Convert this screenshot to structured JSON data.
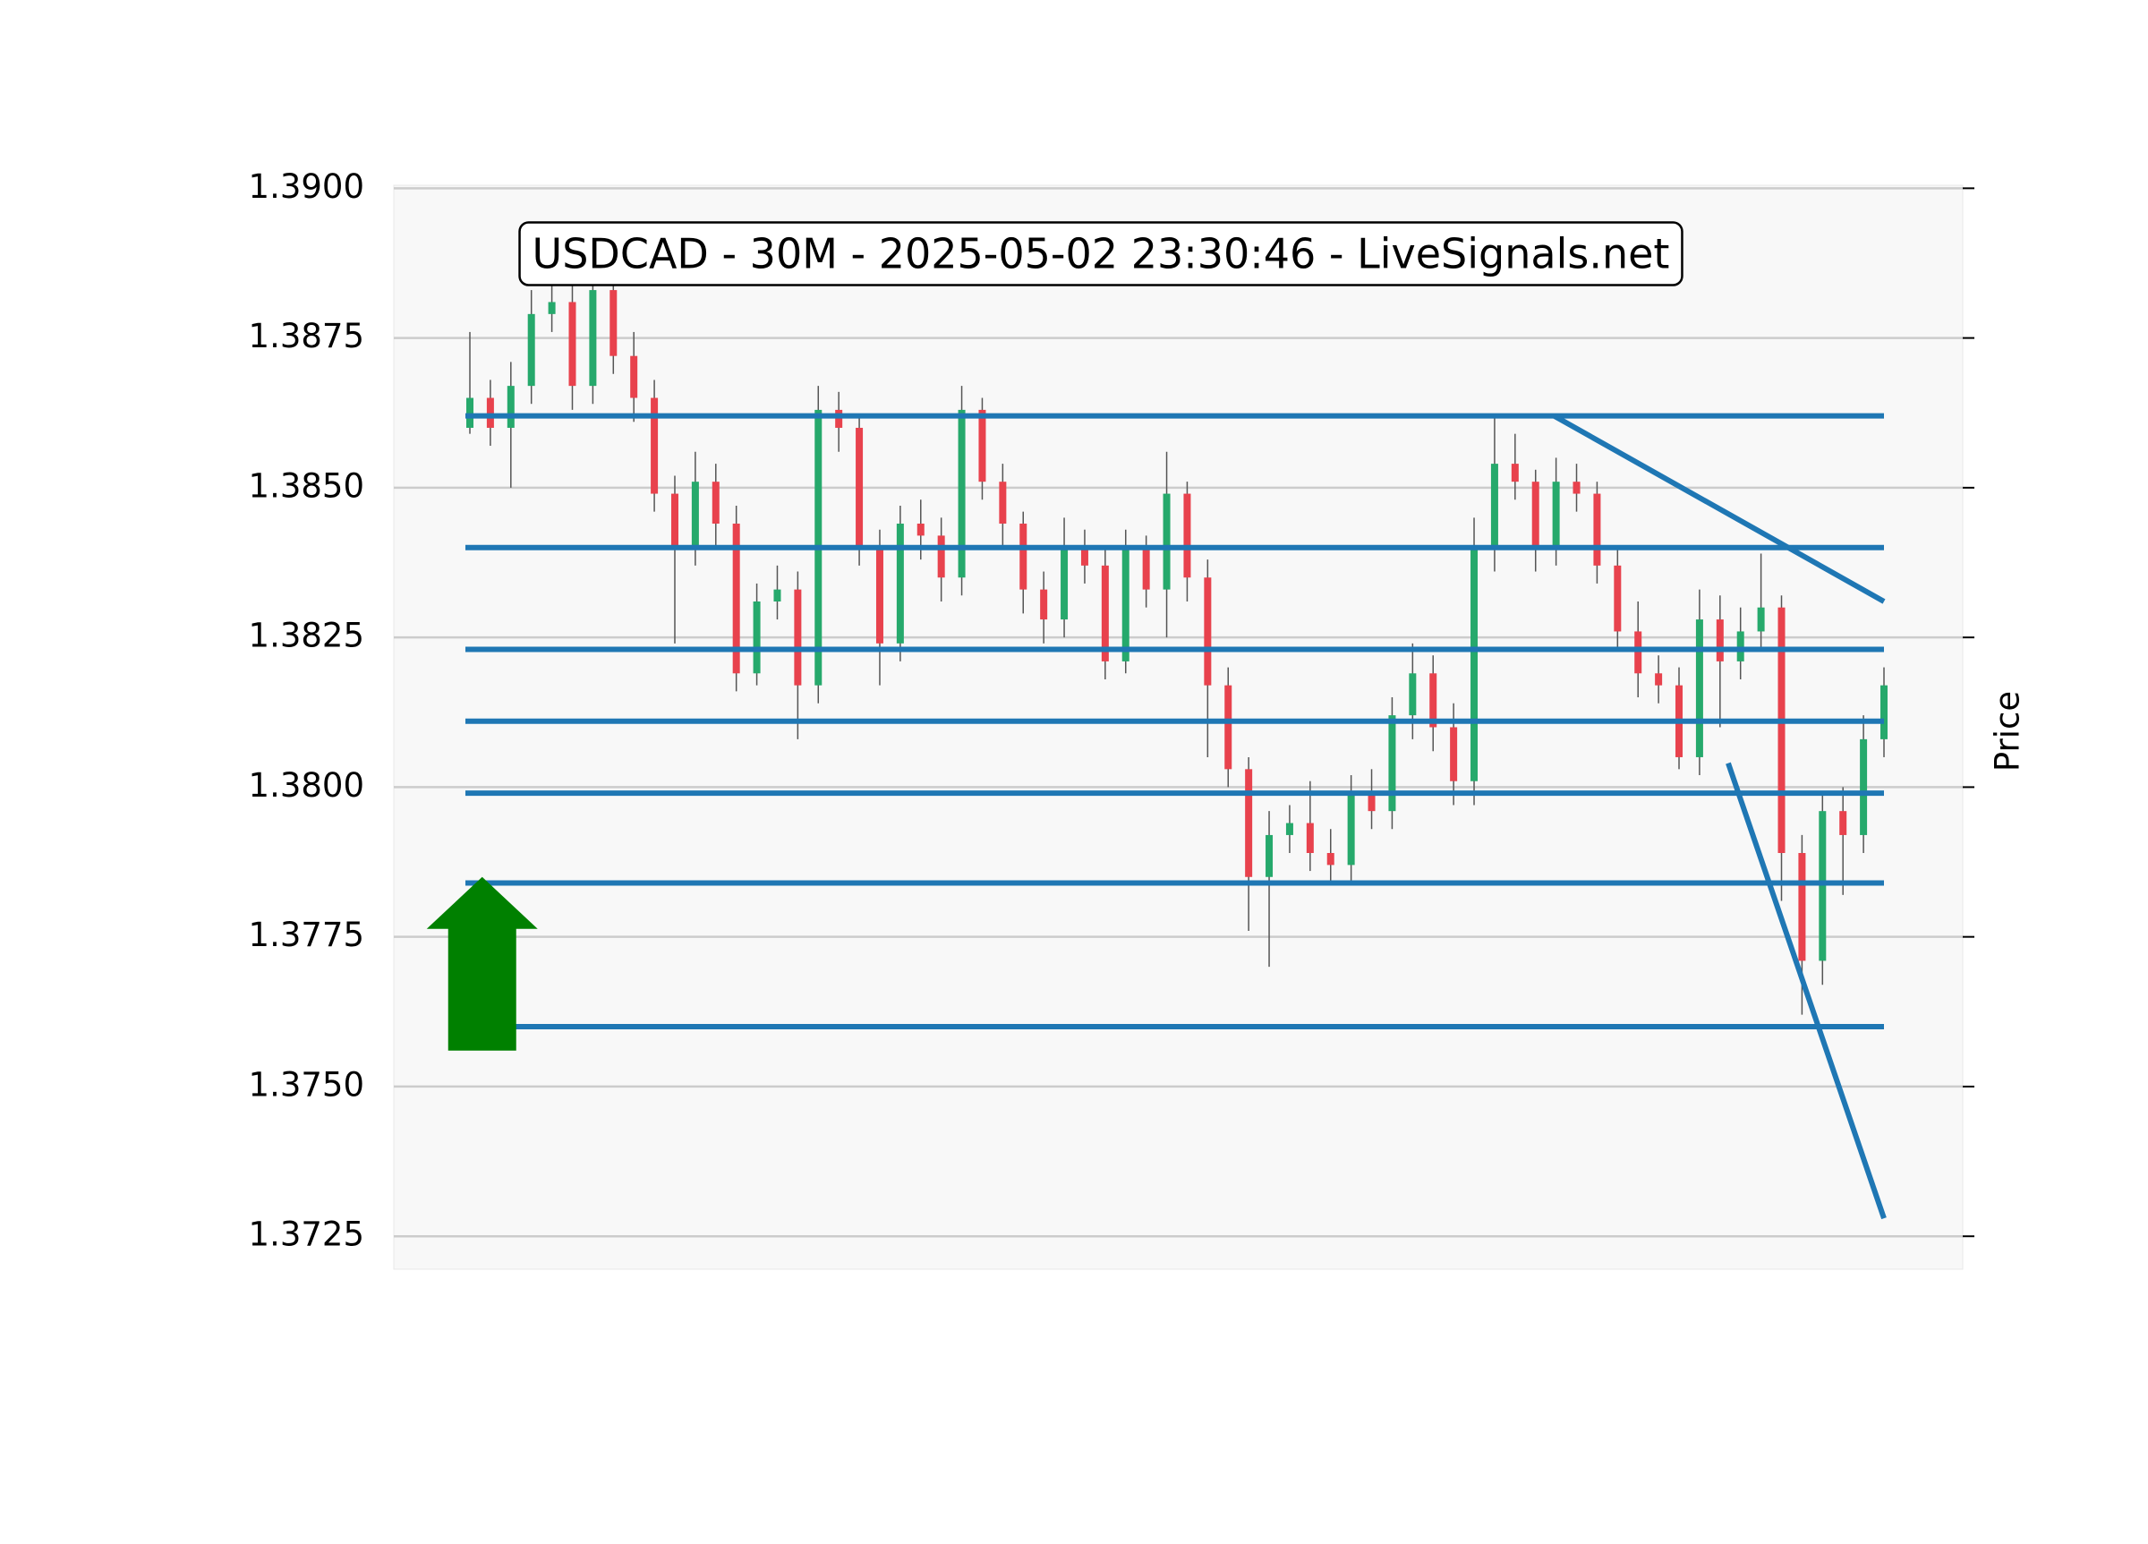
{
  "chart_data": {
    "type": "candlestick",
    "title": "USDCAD - 30M - 2025-05-02 23:30:46 - LiveSignals.net",
    "y_label": "Price",
    "up_color": "#26a96c",
    "down_color": "#e8424d",
    "open": [
      1.386,
      1.3865,
      1.386,
      1.3867,
      1.3879,
      1.3881,
      1.3867,
      1.3883,
      1.3872,
      1.3865,
      1.3849,
      1.384,
      1.3851,
      1.3844,
      1.3819,
      1.3831,
      1.3833,
      1.3817,
      1.3863,
      1.386,
      1.384,
      1.3824,
      1.3844,
      1.3842,
      1.3835,
      1.3863,
      1.3851,
      1.3844,
      1.3833,
      1.3828,
      1.384,
      1.3837,
      1.3821,
      1.384,
      1.3833,
      1.3849,
      1.3835,
      1.3817,
      1.3803,
      1.3785,
      1.3792,
      1.3794,
      1.3789,
      1.3787,
      1.3799,
      1.3796,
      1.3812,
      1.3819,
      1.381,
      1.3801,
      1.384,
      1.3854,
      1.3851,
      1.384,
      1.3851,
      1.3849,
      1.3837,
      1.3826,
      1.3819,
      1.3817,
      1.3805,
      1.3828,
      1.3821,
      1.3826,
      1.383,
      1.3789,
      1.3771,
      1.3796,
      1.3792,
      1.3808
    ],
    "high": [
      1.3876,
      1.3868,
      1.3871,
      1.3883,
      1.3885,
      1.3884,
      1.3887,
      1.3886,
      1.3876,
      1.3868,
      1.3852,
      1.3856,
      1.3854,
      1.3847,
      1.3834,
      1.3837,
      1.3836,
      1.3867,
      1.3866,
      1.3862,
      1.3843,
      1.3847,
      1.3848,
      1.3845,
      1.3867,
      1.3865,
      1.3854,
      1.3846,
      1.3836,
      1.3845,
      1.3843,
      1.384,
      1.3843,
      1.3842,
      1.3856,
      1.3851,
      1.3838,
      1.382,
      1.3805,
      1.3796,
      1.3797,
      1.3801,
      1.3793,
      1.3802,
      1.3803,
      1.3815,
      1.3824,
      1.3822,
      1.3814,
      1.3845,
      1.3862,
      1.3859,
      1.3853,
      1.3855,
      1.3854,
      1.3851,
      1.384,
      1.3831,
      1.3822,
      1.382,
      1.3833,
      1.3832,
      1.383,
      1.3839,
      1.3832,
      1.3792,
      1.3799,
      1.38,
      1.3812,
      1.382
    ],
    "low": [
      1.3859,
      1.3857,
      1.385,
      1.3864,
      1.3876,
      1.3863,
      1.3864,
      1.3869,
      1.3861,
      1.3846,
      1.3824,
      1.3837,
      1.384,
      1.3816,
      1.3817,
      1.3828,
      1.3808,
      1.3814,
      1.3856,
      1.3837,
      1.3817,
      1.3821,
      1.3838,
      1.3831,
      1.3832,
      1.3848,
      1.384,
      1.3829,
      1.3824,
      1.3825,
      1.3834,
      1.3818,
      1.3819,
      1.383,
      1.3825,
      1.3831,
      1.3805,
      1.38,
      1.3776,
      1.377,
      1.3789,
      1.3786,
      1.3784,
      1.3784,
      1.3793,
      1.3793,
      1.3808,
      1.3806,
      1.3797,
      1.3797,
      1.3836,
      1.3848,
      1.3836,
      1.3837,
      1.3846,
      1.3834,
      1.3823,
      1.3815,
      1.3814,
      1.3803,
      1.3802,
      1.381,
      1.3818,
      1.3823,
      1.3781,
      1.3762,
      1.3767,
      1.3782,
      1.3789,
      1.3805
    ],
    "close": [
      1.3865,
      1.386,
      1.3867,
      1.3879,
      1.3881,
      1.3867,
      1.3883,
      1.3872,
      1.3865,
      1.3849,
      1.384,
      1.3851,
      1.3844,
      1.3819,
      1.3831,
      1.3833,
      1.3817,
      1.3863,
      1.386,
      1.384,
      1.3824,
      1.3844,
      1.3842,
      1.3835,
      1.3863,
      1.3851,
      1.3844,
      1.3833,
      1.3828,
      1.384,
      1.3837,
      1.3821,
      1.384,
      1.3833,
      1.3849,
      1.3835,
      1.3817,
      1.3803,
      1.3785,
      1.3792,
      1.3794,
      1.3789,
      1.3787,
      1.3799,
      1.3796,
      1.3812,
      1.3819,
      1.381,
      1.3801,
      1.384,
      1.3854,
      1.3851,
      1.384,
      1.3851,
      1.3849,
      1.3837,
      1.3826,
      1.3819,
      1.3817,
      1.3805,
      1.3828,
      1.3821,
      1.3826,
      1.383,
      1.3789,
      1.3771,
      1.3796,
      1.3792,
      1.3808,
      1.3817
    ],
    "ylim": [
      1.37195,
      1.39005
    ],
    "yticks": [
      {
        "value": 1.39,
        "label": "1.3900"
      },
      1.3875,
      {
        "value": 1.385,
        "label": "1.3850"
      },
      1.3825,
      {
        "value": 1.38,
        "label": "1.3800"
      },
      1.3775,
      {
        "value": 1.375,
        "label": "1.3750"
      },
      1.3725
    ],
    "grid": true,
    "levels": {
      "color": "#1f77b4",
      "values": [
        1.3862,
        1.384,
        1.3823,
        1.3811,
        1.3799,
        1.3784,
        1.376
      ]
    },
    "trendlines": [
      {
        "color": "#1f77b4",
        "x": [
          52.9,
          69
        ],
        "values": [
          1.3862,
          1.3831
        ]
      },
      {
        "color": "#1f77b4",
        "x": [
          61.4,
          69
        ],
        "values": [
          1.3804,
          1.3728
        ]
      }
    ],
    "arrow": {
      "color": "#008000",
      "x": 0.6,
      "values": [
        1.3756,
        1.3785
      ]
    }
  }
}
